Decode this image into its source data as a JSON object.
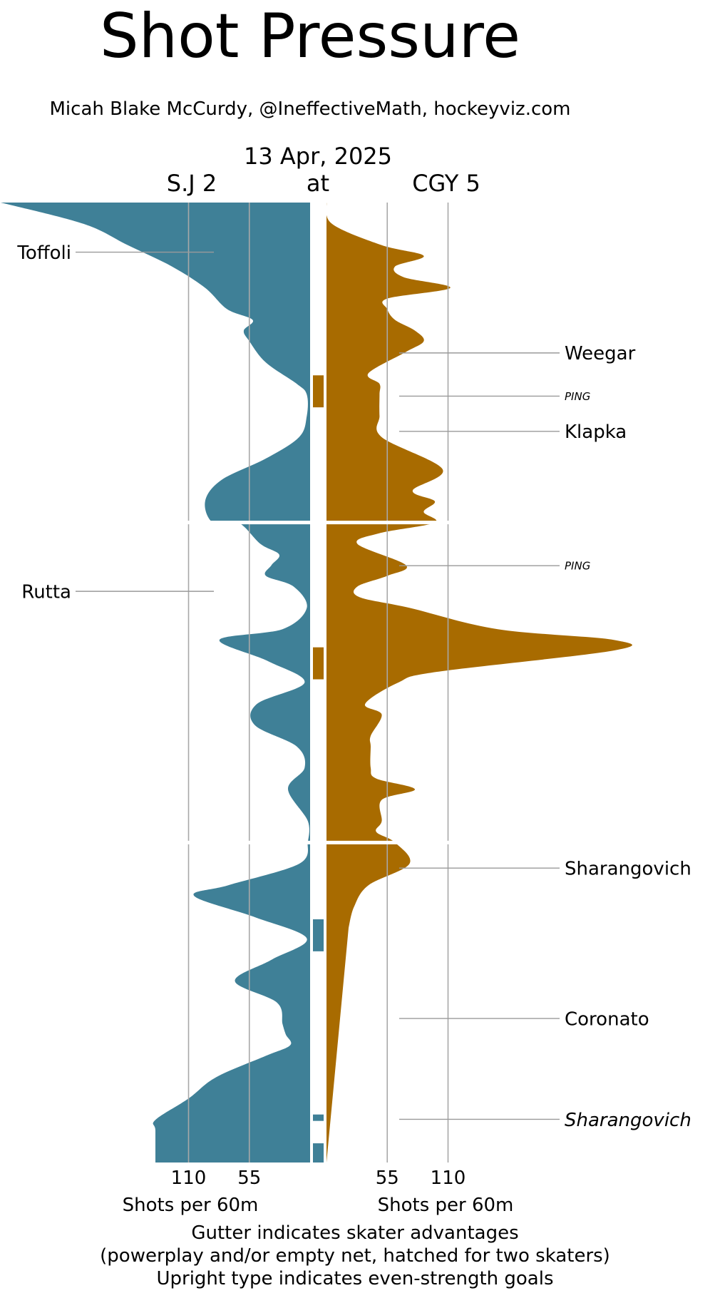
{
  "header": {
    "title": "Shot Pressure",
    "byline": "Micah Blake McCurdy, @IneffectiveMath, hockeyviz.com",
    "date": "13 Apr, 2025",
    "away_team": "S.J 2",
    "at": "at",
    "home_team": "CGY 5"
  },
  "footer": {
    "line1": "Gutter indicates skater advantages",
    "line2": "(powerplay and/or empty net, hatched for two skaters)",
    "line3": "Upright type indicates even-strength goals"
  },
  "chart_data": {
    "type": "area",
    "orientation": "vertical mirrored",
    "colors": {
      "away": "#3f8097",
      "home": "#a86b00"
    },
    "x_ticks_left": [
      "110",
      "55"
    ],
    "x_ticks_right": [
      "55",
      "110"
    ],
    "xlabel_left": "Shots per 60m",
    "xlabel_right": "Shots per 60m",
    "periods": 3,
    "series": [
      {
        "team": "S.J",
        "side": "left",
        "points": [
          [
            0,
            280
          ],
          [
            2,
            205
          ],
          [
            4,
            165
          ],
          [
            6,
            125
          ],
          [
            8,
            95
          ],
          [
            10,
            75
          ],
          [
            11,
            52
          ],
          [
            12,
            60
          ],
          [
            13,
            55
          ],
          [
            15,
            40
          ],
          [
            17,
            12
          ],
          [
            18,
            3
          ],
          [
            20,
            3
          ],
          [
            22,
            10
          ],
          [
            24,
            40
          ],
          [
            26,
            80
          ],
          [
            28,
            95
          ],
          [
            30,
            88
          ],
          [
            30,
            65
          ],
          [
            32,
            45
          ],
          [
            33,
            28
          ],
          [
            34,
            35
          ],
          [
            35,
            40
          ],
          [
            36,
            15
          ],
          [
            38,
            3
          ],
          [
            40,
            25
          ],
          [
            41,
            82
          ],
          [
            43,
            38
          ],
          [
            45,
            5
          ],
          [
            47,
            48
          ],
          [
            49,
            50
          ],
          [
            51,
            12
          ],
          [
            53,
            5
          ],
          [
            55,
            20
          ],
          [
            58,
            2
          ],
          [
            60,
            2
          ],
          [
            60,
            2
          ],
          [
            62,
            10
          ],
          [
            64,
            74
          ],
          [
            65,
            105
          ],
          [
            67,
            50
          ],
          [
            69,
            3
          ],
          [
            71,
            35
          ],
          [
            73,
            68
          ],
          [
            75,
            30
          ],
          [
            77,
            25
          ],
          [
            78,
            22
          ],
          [
            79,
            18
          ],
          [
            80,
            40
          ],
          [
            82,
            85
          ],
          [
            84,
            110
          ],
          [
            86,
            140
          ],
          [
            87,
            140
          ],
          [
            90,
            140
          ]
        ]
      },
      {
        "team": "CGY",
        "side": "right",
        "points": [
          [
            0,
            0
          ],
          [
            2,
            5
          ],
          [
            4,
            50
          ],
          [
            5,
            88
          ],
          [
            6,
            62
          ],
          [
            7,
            70
          ],
          [
            8,
            112
          ],
          [
            9,
            55
          ],
          [
            10,
            55
          ],
          [
            11,
            62
          ],
          [
            12,
            80
          ],
          [
            13,
            88
          ],
          [
            14,
            72
          ],
          [
            16,
            38
          ],
          [
            17,
            48
          ],
          [
            18,
            48
          ],
          [
            20,
            48
          ],
          [
            22,
            50
          ],
          [
            25,
            105
          ],
          [
            27,
            78
          ],
          [
            28,
            98
          ],
          [
            29,
            88
          ],
          [
            30,
            98
          ],
          [
            31,
            48
          ],
          [
            32,
            28
          ],
          [
            34,
            72
          ],
          [
            35,
            55
          ],
          [
            36,
            28
          ],
          [
            37,
            30
          ],
          [
            38,
            75
          ],
          [
            40,
            155
          ],
          [
            41,
            260
          ],
          [
            42,
            260
          ],
          [
            44,
            100
          ],
          [
            45,
            65
          ],
          [
            47,
            35
          ],
          [
            48,
            50
          ],
          [
            50,
            40
          ],
          [
            51,
            40
          ],
          [
            53,
            40
          ],
          [
            54,
            45
          ],
          [
            55,
            80
          ],
          [
            56,
            50
          ],
          [
            58,
            50
          ],
          [
            59,
            45
          ],
          [
            60,
            62
          ],
          [
            62,
            75
          ],
          [
            64,
            38
          ],
          [
            66,
            25
          ],
          [
            68,
            20
          ]
        ]
      }
    ],
    "gutter_marks": [
      {
        "team": "CGY",
        "period": 1,
        "start": 0.54,
        "end": 0.64
      },
      {
        "team": "CGY",
        "period": 2,
        "start": 0.39,
        "end": 0.49
      },
      {
        "team": "S.J",
        "period": 3,
        "start": 0.24,
        "end": 0.34
      },
      {
        "team": "S.J",
        "period": 3,
        "start": 0.85,
        "end": 0.87
      },
      {
        "team": "S.J",
        "period": 3,
        "start": 0.94,
        "end": 1.0
      }
    ],
    "goals": [
      {
        "label": "Toffoli",
        "team": "S.J",
        "period": 1,
        "time": 0.155,
        "even_strength": true
      },
      {
        "label": "Weegar",
        "team": "CGY",
        "period": 1,
        "time": 0.47,
        "even_strength": true
      },
      {
        "label": "PING",
        "team": "CGY",
        "period": 1,
        "time": 0.605,
        "even_strength": false,
        "ping": true
      },
      {
        "label": "Klapka",
        "team": "CGY",
        "period": 1,
        "time": 0.715,
        "even_strength": true
      },
      {
        "label": "PING",
        "team": "CGY",
        "period": 2,
        "time": 0.135,
        "even_strength": false,
        "ping": true
      },
      {
        "label": "Rutta",
        "team": "S.J",
        "period": 2,
        "time": 0.215,
        "even_strength": true
      },
      {
        "label": "Sharangovich",
        "team": "CGY",
        "period": 3,
        "time": 0.08,
        "even_strength": true
      },
      {
        "label": "Coronato",
        "team": "CGY",
        "period": 3,
        "time": 0.55,
        "even_strength": true
      },
      {
        "label": "Sharangovich",
        "team": "CGY",
        "period": 3,
        "time": 0.865,
        "even_strength": false
      }
    ]
  }
}
